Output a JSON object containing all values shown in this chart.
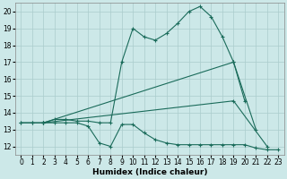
{
  "title": "",
  "xlabel": "Humidex (Indice chaleur)",
  "background_color": "#cce8e8",
  "grid_color": "#aacccc",
  "line_color": "#1a6b5a",
  "xlim": [
    -0.5,
    23.5
  ],
  "ylim": [
    11.5,
    20.5
  ],
  "xticks": [
    0,
    1,
    2,
    3,
    4,
    5,
    6,
    7,
    8,
    9,
    10,
    11,
    12,
    13,
    14,
    15,
    16,
    17,
    18,
    19,
    20,
    21,
    22,
    23
  ],
  "yticks": [
    12,
    13,
    14,
    15,
    16,
    17,
    18,
    19,
    20
  ],
  "line_max": {
    "x": [
      0,
      1,
      2,
      3,
      4,
      5,
      6,
      7,
      8,
      9,
      10,
      11,
      12,
      13,
      14,
      15,
      16,
      17,
      18,
      19,
      20
    ],
    "y": [
      13.4,
      13.4,
      13.4,
      13.6,
      13.6,
      13.5,
      13.5,
      13.4,
      13.4,
      17.0,
      19.0,
      18.5,
      18.3,
      18.7,
      19.3,
      20.0,
      20.3,
      19.7,
      18.5,
      17.0,
      14.7
    ]
  },
  "line_avg_high": {
    "x": [
      0,
      2,
      20,
      21
    ],
    "y": [
      13.4,
      13.4,
      17.0,
      13.0
    ]
  },
  "line_avg_low": {
    "x": [
      0,
      2,
      20,
      22
    ],
    "y": [
      13.4,
      13.4,
      14.7,
      12.0
    ]
  },
  "line_min": {
    "x": [
      0,
      1,
      2,
      3,
      4,
      5,
      6,
      7,
      8,
      9,
      10,
      11,
      12,
      13,
      14,
      15,
      16,
      17,
      18,
      19,
      20,
      21,
      22,
      23
    ],
    "y": [
      13.4,
      13.4,
      13.4,
      13.4,
      13.4,
      13.4,
      13.2,
      12.2,
      12.0,
      13.3,
      13.3,
      12.8,
      12.4,
      12.2,
      12.1,
      12.1,
      12.1,
      12.1,
      12.1,
      12.1,
      12.1,
      11.9,
      11.8,
      11.8
    ]
  }
}
